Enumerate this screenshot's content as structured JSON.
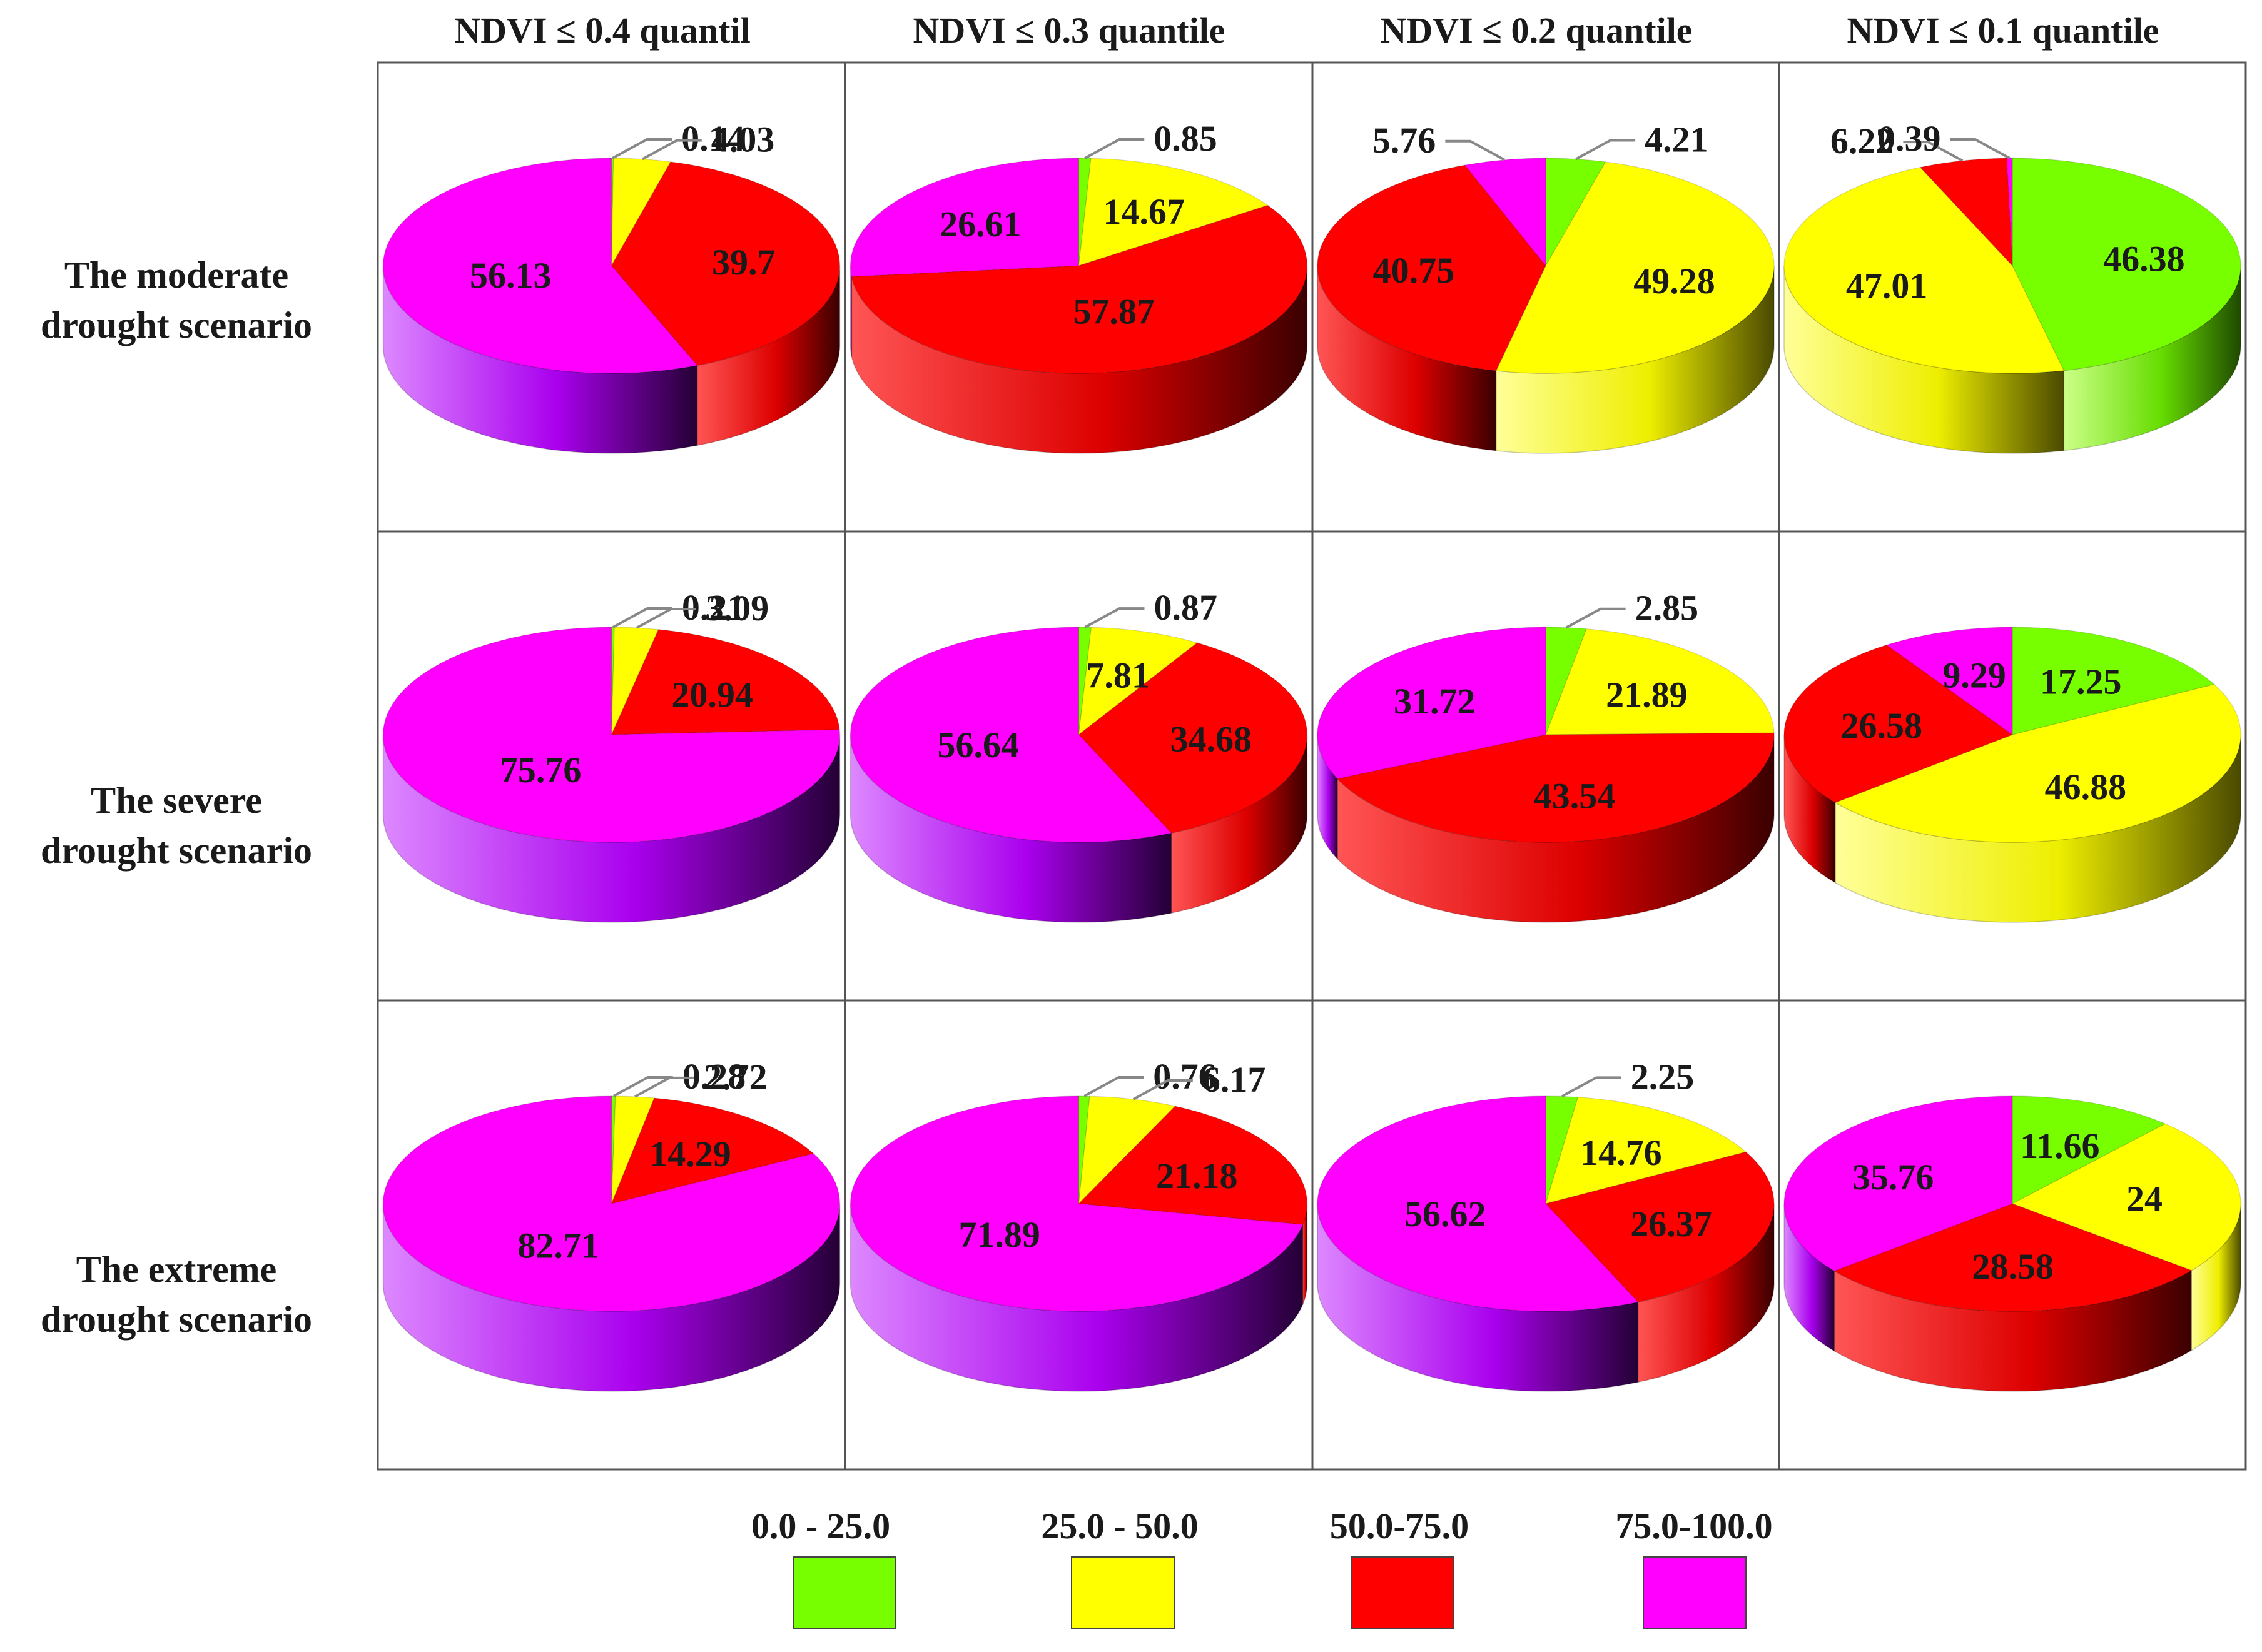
{
  "chart_data": {
    "type": "pie",
    "title": "",
    "column_headers": [
      "NDVI ≤ 0.4 quantil",
      "NDVI ≤ 0.3 quantile",
      "NDVI ≤ 0.2 quantile",
      "NDVI ≤ 0.1 quantile"
    ],
    "row_headers": [
      [
        "The moderate",
        "drought scenario"
      ],
      [
        "The severe",
        "drought scenario"
      ],
      [
        "The extreme",
        "drought scenario"
      ]
    ],
    "categories": [
      "0.0 - 25.0",
      "25.0 - 50.0",
      "50.0-75.0",
      "75.0-100.0"
    ],
    "colors": [
      "#77ff00",
      "#ffff00",
      "#ff0000",
      "#ff00ff"
    ],
    "legend_position": "bottom",
    "pies": [
      [
        {
          "values": [
            0.14,
            4.03,
            39.7,
            56.13
          ],
          "labels": [
            "0.14",
            "4.03",
            "39.7",
            "56.13"
          ]
        },
        {
          "values": [
            0.85,
            14.67,
            57.87,
            26.61
          ],
          "labels": [
            "0.85",
            "14.67",
            "57.87",
            "26.61"
          ]
        },
        {
          "values": [
            4.21,
            49.28,
            40.75,
            5.76
          ],
          "labels": [
            "4.21",
            "49.28",
            "40.75",
            "5.76"
          ]
        },
        {
          "values": [
            46.38,
            47.01,
            6.22,
            0.39
          ],
          "labels": [
            "46.38",
            "47.01",
            "6.22",
            "0.39"
          ]
        }
      ],
      [
        {
          "values": [
            0.21,
            3.09,
            20.94,
            75.76
          ],
          "labels": [
            "0.21",
            "3.09",
            "20.94",
            "75.76"
          ]
        },
        {
          "values": [
            0.87,
            7.81,
            34.68,
            56.64
          ],
          "labels": [
            "0.87",
            "7.81",
            "34.68",
            "56.64"
          ]
        },
        {
          "values": [
            2.85,
            21.89,
            43.54,
            31.72
          ],
          "labels": [
            "2.85",
            "21.89",
            "43.54",
            "31.72"
          ]
        },
        {
          "values": [
            17.25,
            46.88,
            26.58,
            9.29
          ],
          "labels": [
            "17.25",
            "46.88",
            "26.58",
            "9.29"
          ]
        }
      ],
      [
        {
          "values": [
            0.28,
            2.72,
            14.29,
            82.71
          ],
          "labels": [
            "0.28",
            "2.72",
            "14.29",
            "82.71"
          ]
        },
        {
          "values": [
            0.76,
            6.17,
            21.18,
            71.89
          ],
          "labels": [
            "0.76",
            "6.17",
            "21.18",
            "71.89"
          ]
        },
        {
          "values": [
            2.25,
            14.76,
            26.37,
            56.62
          ],
          "labels": [
            "2.25",
            "14.76",
            "26.37",
            "56.62"
          ]
        },
        {
          "values": [
            11.66,
            24,
            28.58,
            35.76
          ],
          "labels": [
            "11.66",
            "24",
            "28.58",
            "35.76"
          ]
        }
      ]
    ]
  }
}
